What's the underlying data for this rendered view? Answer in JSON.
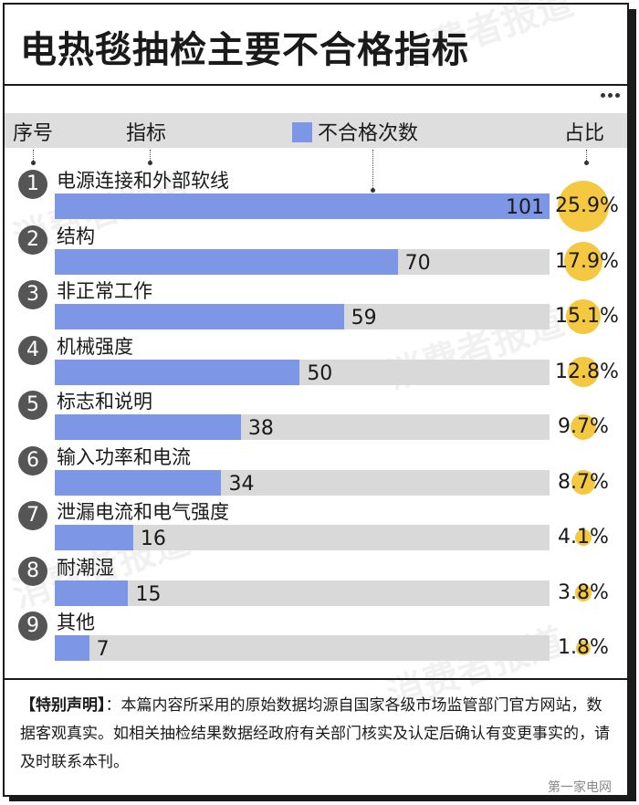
{
  "title": "电热毯抽检主要不合格指标",
  "header": {
    "col_index": "序号",
    "col_indicator": "指标",
    "legend_label": "不合格次数",
    "col_share": "占比"
  },
  "colors": {
    "bar": "#7d96e6",
    "bar_bg": "#d9d9d9",
    "pct_highlight": "#f5c842",
    "badge": "#555555"
  },
  "chart_data": {
    "type": "bar",
    "orientation": "horizontal",
    "categories": [
      "电源连接和外部软线",
      "结构",
      "非正常工作",
      "机械强度",
      "标志和说明",
      "输入功率和电流",
      "泄漏电流和电气强度",
      "耐潮湿",
      "其他"
    ],
    "indices": [
      "1",
      "2",
      "3",
      "4",
      "5",
      "6",
      "7",
      "8",
      "9"
    ],
    "values": [
      101,
      70,
      59,
      50,
      38,
      34,
      16,
      15,
      7
    ],
    "value_labels": [
      "101",
      "70",
      "59",
      "50",
      "38",
      "34",
      "16",
      "15",
      "7"
    ],
    "shares": [
      "25.9%",
      "17.9%",
      "15.1%",
      "12.8%",
      "9.7%",
      "8.7%",
      "4.1%",
      "3.8%",
      "1.8%"
    ],
    "share_values": [
      25.9,
      17.9,
      15.1,
      12.8,
      9.7,
      8.7,
      4.1,
      3.8,
      1.8
    ],
    "xlim": [
      0,
      101
    ],
    "legend": "top"
  },
  "statement": {
    "label": "【特别声明】",
    "text": "：本篇内容所采用的原始数据均源自国家各级市场监管部门官方网站，数据客观真实。如相关抽检结果数据经政府有关部门核实及认定后确认有变更事实的，请及时联系本刊。"
  },
  "watermark_text": "消费者报道",
  "source_credit": "第一家电网"
}
